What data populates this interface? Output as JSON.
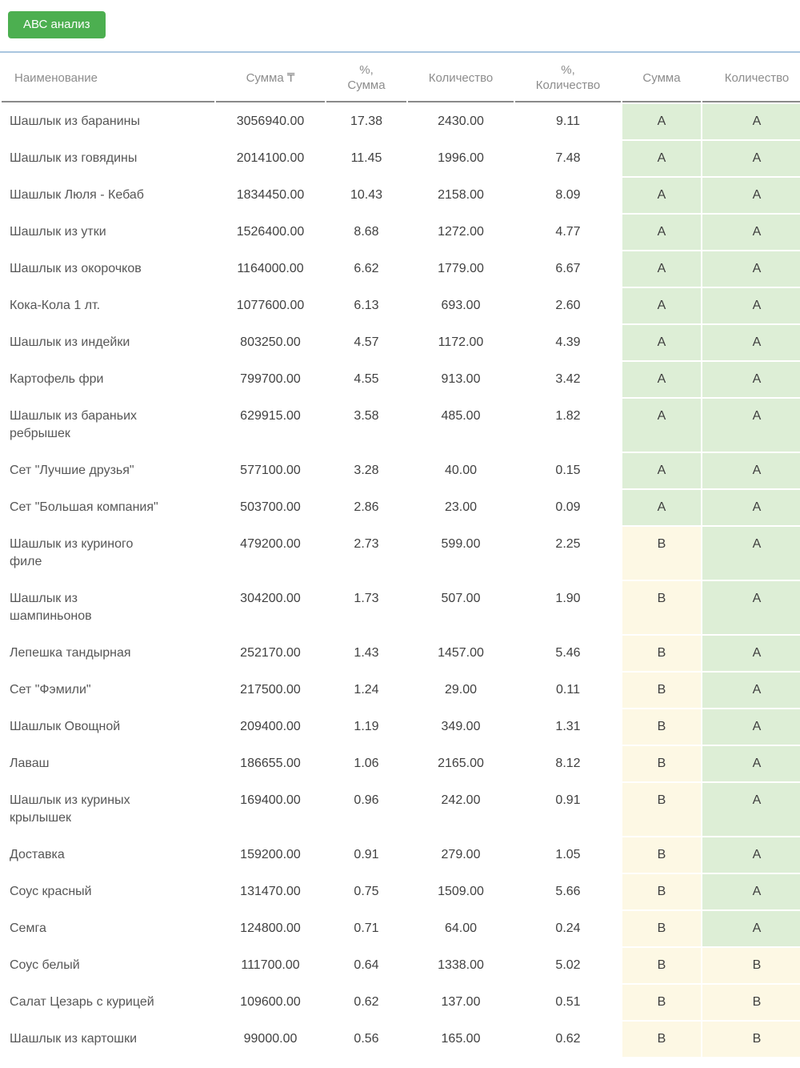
{
  "toolbar": {
    "abc_button_label": "АВС анализ"
  },
  "colors": {
    "button_green": "#4caf50",
    "category_a_bg": "#ddeed6",
    "category_b_bg": "#fdf8e4",
    "divider_blue": "#a9c6df",
    "header_border": "#8a8a8a"
  },
  "table": {
    "headers": [
      "Наименование",
      "Сумма ₸",
      "%,\nСумма",
      "Количество",
      "%,\nКоличество",
      "Сумма",
      "Количество"
    ],
    "rows": [
      {
        "name": "Шашлык из баранины",
        "sum": "3056940.00",
        "sum_pct": "17.38",
        "qty": "2430.00",
        "qty_pct": "9.11",
        "sum_cat": "A",
        "qty_cat": "A"
      },
      {
        "name": "Шашлык из говядины",
        "sum": "2014100.00",
        "sum_pct": "11.45",
        "qty": "1996.00",
        "qty_pct": "7.48",
        "sum_cat": "A",
        "qty_cat": "A"
      },
      {
        "name": "Шашлык Люля - Кебаб",
        "sum": "1834450.00",
        "sum_pct": "10.43",
        "qty": "2158.00",
        "qty_pct": "8.09",
        "sum_cat": "A",
        "qty_cat": "A"
      },
      {
        "name": "Шашлык из утки",
        "sum": "1526400.00",
        "sum_pct": "8.68",
        "qty": "1272.00",
        "qty_pct": "4.77",
        "sum_cat": "A",
        "qty_cat": "A"
      },
      {
        "name": "Шашлык из окорочков",
        "sum": "1164000.00",
        "sum_pct": "6.62",
        "qty": "1779.00",
        "qty_pct": "6.67",
        "sum_cat": "A",
        "qty_cat": "A"
      },
      {
        "name": "Кока-Кола 1 лт.",
        "sum": "1077600.00",
        "sum_pct": "6.13",
        "qty": "693.00",
        "qty_pct": "2.60",
        "sum_cat": "A",
        "qty_cat": "A"
      },
      {
        "name": "Шашлык из индейки",
        "sum": "803250.00",
        "sum_pct": "4.57",
        "qty": "1172.00",
        "qty_pct": "4.39",
        "sum_cat": "A",
        "qty_cat": "A"
      },
      {
        "name": "Картофель фри",
        "sum": "799700.00",
        "sum_pct": "4.55",
        "qty": "913.00",
        "qty_pct": "3.42",
        "sum_cat": "A",
        "qty_cat": "A"
      },
      {
        "name": "Шашлык из бараньих\nребрышек",
        "sum": "629915.00",
        "sum_pct": "3.58",
        "qty": "485.00",
        "qty_pct": "1.82",
        "sum_cat": "A",
        "qty_cat": "A"
      },
      {
        "name": "Сет \"Лучшие друзья\"",
        "sum": "577100.00",
        "sum_pct": "3.28",
        "qty": "40.00",
        "qty_pct": "0.15",
        "sum_cat": "A",
        "qty_cat": "A"
      },
      {
        "name": "Сет \"Большая компания\"",
        "sum": "503700.00",
        "sum_pct": "2.86",
        "qty": "23.00",
        "qty_pct": "0.09",
        "sum_cat": "A",
        "qty_cat": "A"
      },
      {
        "name": "Шашлык из куриного\nфиле",
        "sum": "479200.00",
        "sum_pct": "2.73",
        "qty": "599.00",
        "qty_pct": "2.25",
        "sum_cat": "B",
        "qty_cat": "A"
      },
      {
        "name": "Шашлык из\nшампиньонов",
        "sum": "304200.00",
        "sum_pct": "1.73",
        "qty": "507.00",
        "qty_pct": "1.90",
        "sum_cat": "B",
        "qty_cat": "A"
      },
      {
        "name": "Лепешка тандырная",
        "sum": "252170.00",
        "sum_pct": "1.43",
        "qty": "1457.00",
        "qty_pct": "5.46",
        "sum_cat": "B",
        "qty_cat": "A"
      },
      {
        "name": "Сет \"Фэмили\"",
        "sum": "217500.00",
        "sum_pct": "1.24",
        "qty": "29.00",
        "qty_pct": "0.11",
        "sum_cat": "B",
        "qty_cat": "A"
      },
      {
        "name": "Шашлык Овощной",
        "sum": "209400.00",
        "sum_pct": "1.19",
        "qty": "349.00",
        "qty_pct": "1.31",
        "sum_cat": "B",
        "qty_cat": "A"
      },
      {
        "name": "Лаваш",
        "sum": "186655.00",
        "sum_pct": "1.06",
        "qty": "2165.00",
        "qty_pct": "8.12",
        "sum_cat": "B",
        "qty_cat": "A"
      },
      {
        "name": "Шашлык из куриных\nкрылышек",
        "sum": "169400.00",
        "sum_pct": "0.96",
        "qty": "242.00",
        "qty_pct": "0.91",
        "sum_cat": "B",
        "qty_cat": "A"
      },
      {
        "name": "Доставка",
        "sum": "159200.00",
        "sum_pct": "0.91",
        "qty": "279.00",
        "qty_pct": "1.05",
        "sum_cat": "B",
        "qty_cat": "A"
      },
      {
        "name": "Соус красный",
        "sum": "131470.00",
        "sum_pct": "0.75",
        "qty": "1509.00",
        "qty_pct": "5.66",
        "sum_cat": "B",
        "qty_cat": "A"
      },
      {
        "name": "Семга",
        "sum": "124800.00",
        "sum_pct": "0.71",
        "qty": "64.00",
        "qty_pct": "0.24",
        "sum_cat": "B",
        "qty_cat": "A"
      },
      {
        "name": "Соус белый",
        "sum": "111700.00",
        "sum_pct": "0.64",
        "qty": "1338.00",
        "qty_pct": "5.02",
        "sum_cat": "B",
        "qty_cat": "B"
      },
      {
        "name": "Салат Цезарь с курицей",
        "sum": "109600.00",
        "sum_pct": "0.62",
        "qty": "137.00",
        "qty_pct": "0.51",
        "sum_cat": "B",
        "qty_cat": "B"
      },
      {
        "name": "Шашлык из картошки",
        "sum": "99000.00",
        "sum_pct": "0.56",
        "qty": "165.00",
        "qty_pct": "0.62",
        "sum_cat": "B",
        "qty_cat": "B"
      }
    ]
  }
}
